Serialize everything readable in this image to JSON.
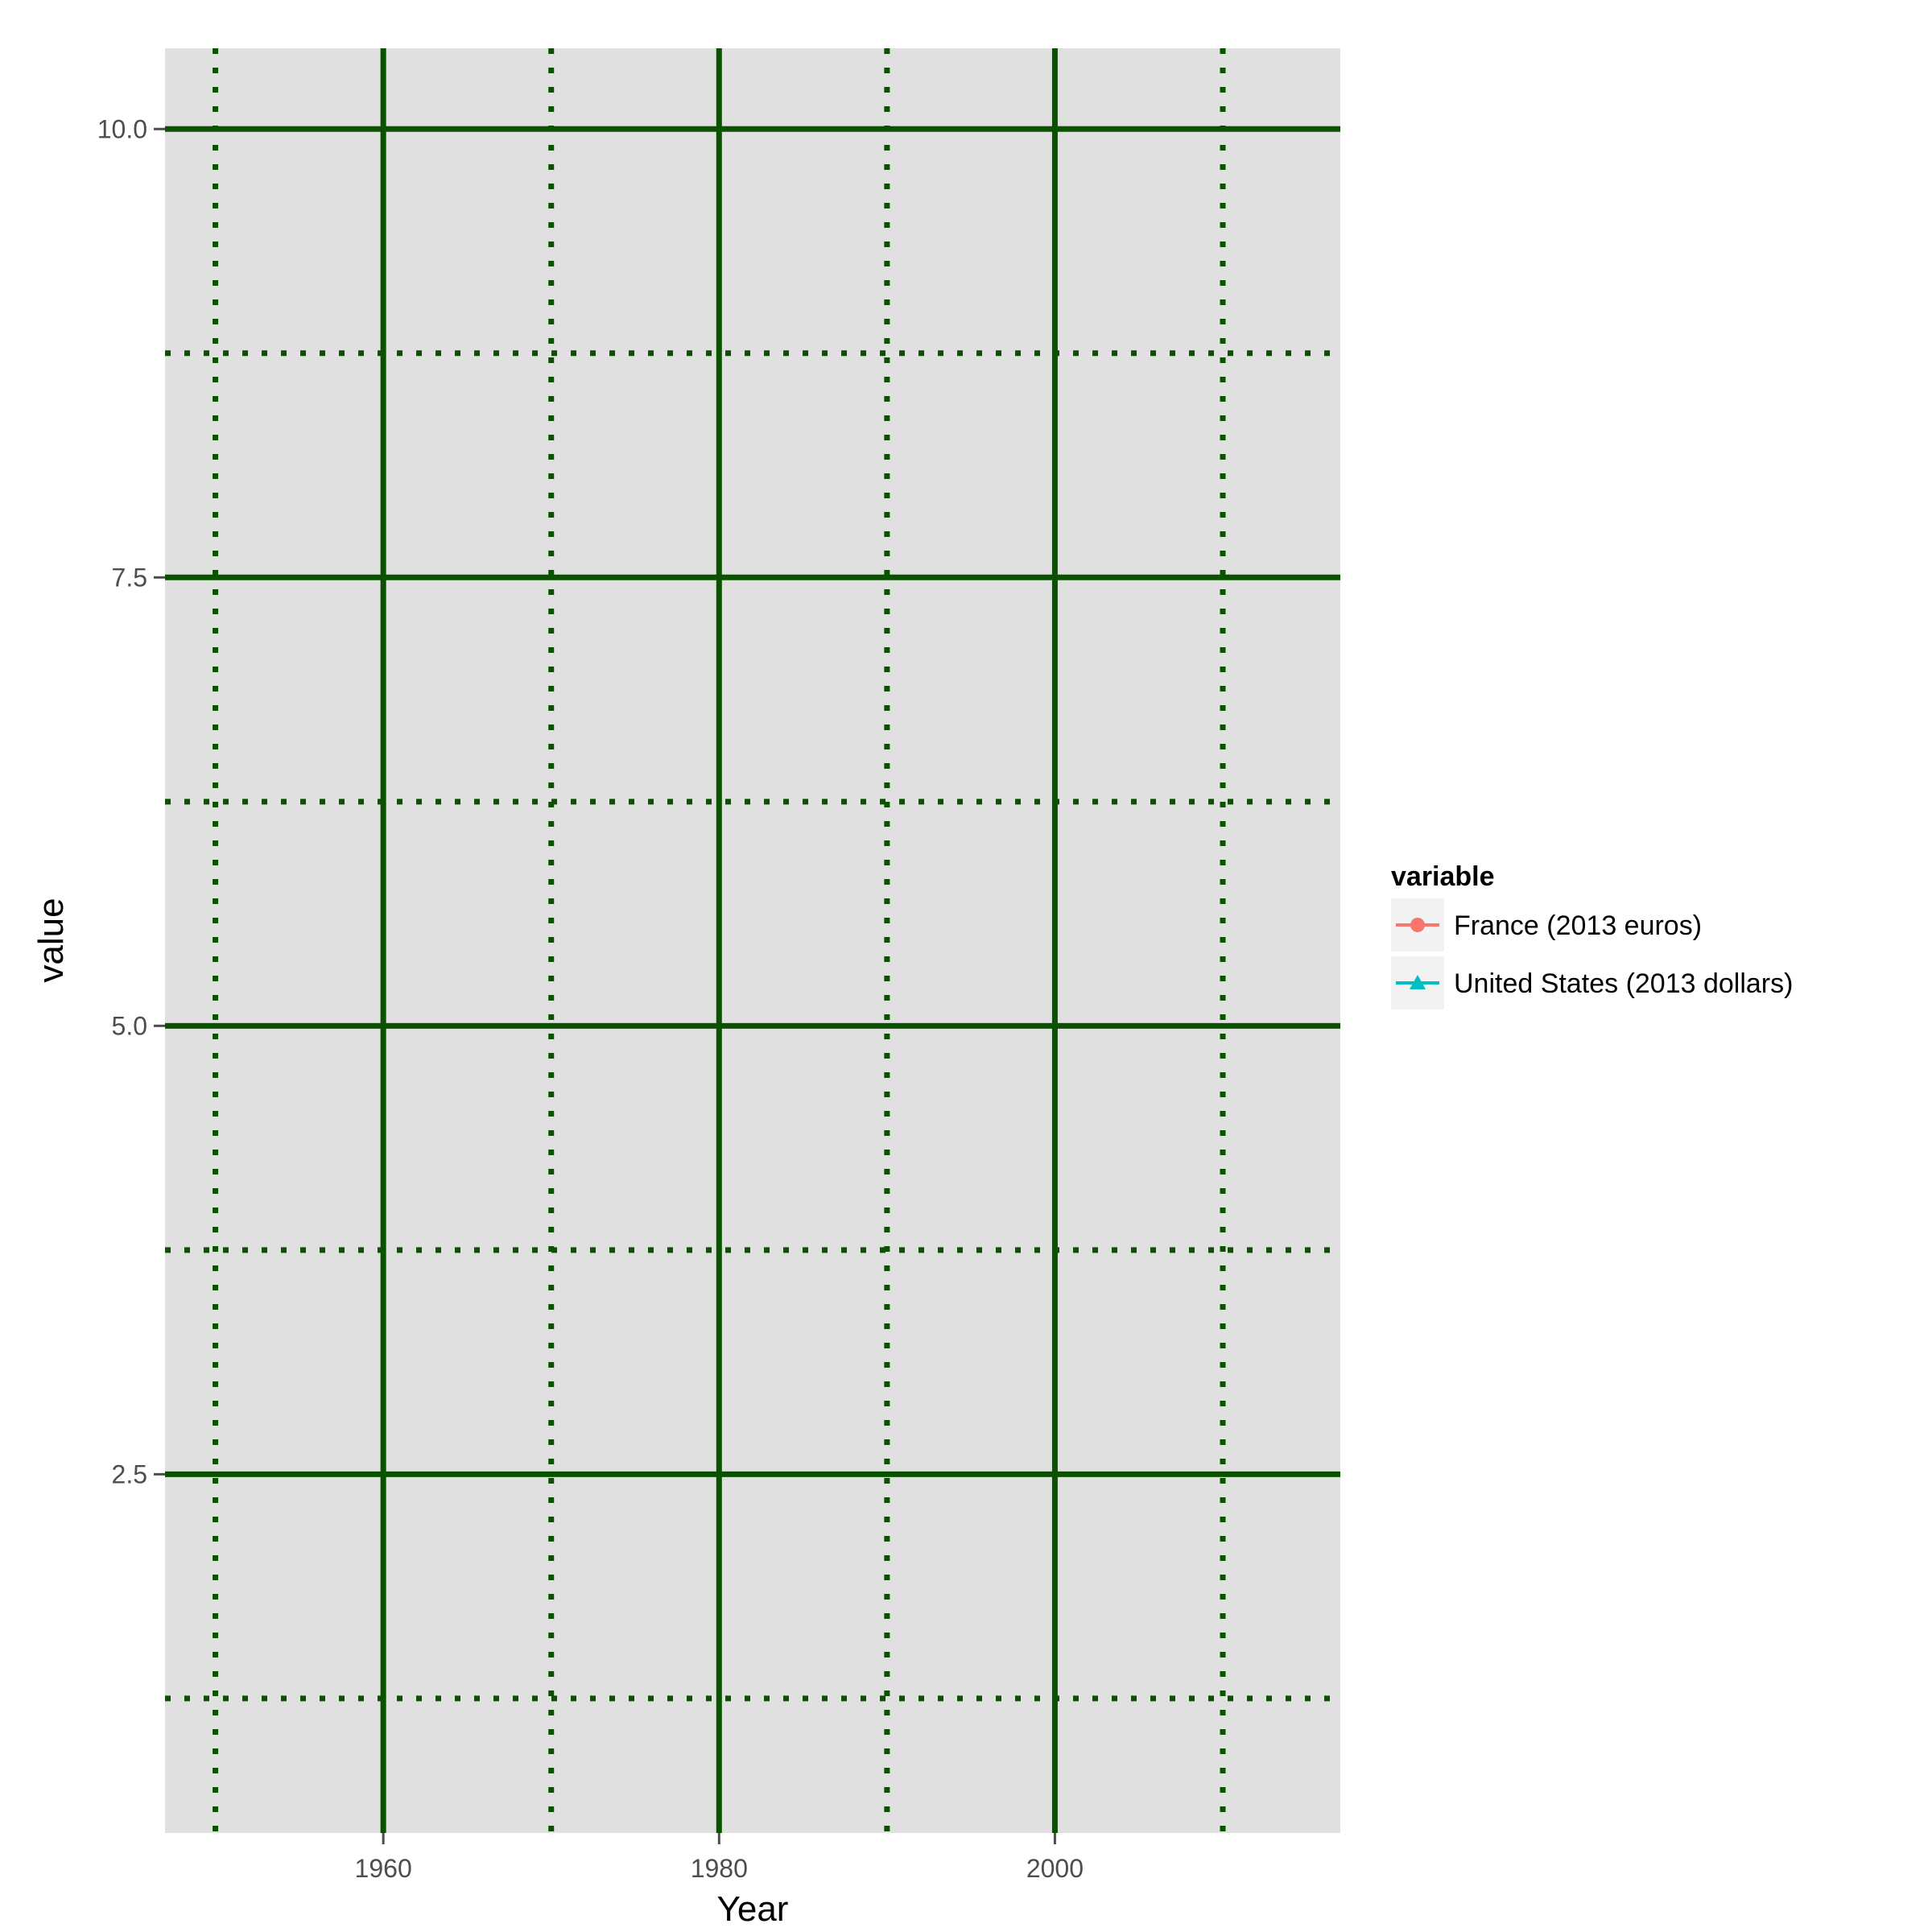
{
  "chart_data": {
    "type": "line",
    "title": "",
    "xlabel": "Year",
    "ylabel": "value",
    "xlim": [
      1947,
      2017
    ],
    "ylim": [
      0.5,
      10.45
    ],
    "x_ticks": [
      1960,
      1980,
      2000
    ],
    "x_tick_labels": [
      "1960",
      "1980",
      "2000"
    ],
    "x_minor_ticks": [
      1950,
      1970,
      1990,
      2010
    ],
    "y_ticks": [
      2.5,
      5.0,
      7.5,
      10.0
    ],
    "y_tick_labels": [
      "2.5",
      "5.0",
      "7.5",
      "10.0"
    ],
    "y_minor_ticks": [
      1.25,
      3.75,
      6.25,
      8.75
    ],
    "grid": true,
    "grid_color": "#0b5200",
    "panel_background": "#e0e0e0",
    "legend": {
      "title": "variable",
      "position": "right",
      "entries": [
        {
          "label": "France (2013 euros)",
          "color": "#f8766d",
          "marker": "circle"
        },
        {
          "label": "United States (2013 dollars)",
          "color": "#00bfc4",
          "marker": "triangle"
        }
      ]
    },
    "series": [
      {
        "name": "France (2013 euros)",
        "color": "#f8766d",
        "marker": "circle",
        "x": [],
        "y": []
      },
      {
        "name": "United States (2013 dollars)",
        "color": "#00bfc4",
        "marker": "triangle",
        "x": [],
        "y": []
      }
    ]
  }
}
